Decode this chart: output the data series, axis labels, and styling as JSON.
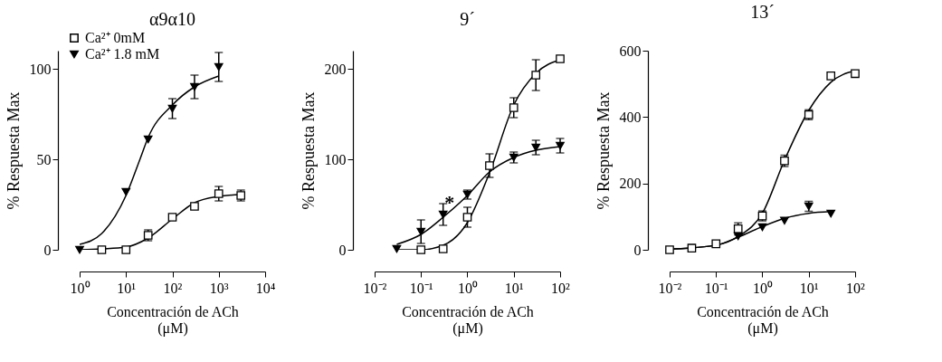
{
  "chart_data": [
    {
      "type": "scatter",
      "title": "α9α10",
      "xlabel": "Concentración de ACh\n(μM)",
      "ylabel": "% Respuesta Max",
      "log": "x",
      "xlim": [
        1,
        10000
      ],
      "xticks": [
        {
          "value": 1,
          "label": "10⁰"
        },
        {
          "value": 10,
          "label": "10¹"
        },
        {
          "value": 100,
          "label": "10²"
        },
        {
          "value": 1000,
          "label": "10³"
        },
        {
          "value": 10000,
          "label": "10⁴"
        }
      ],
      "ylim": [
        0,
        110
      ],
      "yticks": [
        0,
        50,
        100
      ],
      "legend": "top left",
      "series": [
        {
          "name": "Ca²⁺ 0mM",
          "color": "#000000",
          "marker": "square",
          "x": [
            3,
            10,
            30,
            100,
            300,
            1000,
            3000
          ],
          "values": [
            0,
            0,
            8,
            18,
            24,
            31,
            30
          ],
          "errors": [
            null,
            null,
            3,
            null,
            null,
            4,
            3
          ]
        },
        {
          "name": "Ca²⁺ 1.8 mM",
          "color": "#000000",
          "marker": "triangle",
          "x": [
            1,
            10,
            30,
            100,
            300,
            1000
          ],
          "values": [
            0,
            32,
            61,
            78,
            90,
            101
          ],
          "errors": [
            null,
            null,
            null,
            5.5,
            6.5,
            8
          ]
        },
        {
          "type": "line",
          "color": "#000000",
          "marker": "none",
          "x": [
            1,
            3,
            10,
            30,
            100,
            300,
            1000,
            3000
          ],
          "values": [
            0,
            0.5,
            1.5,
            6.5,
            17,
            26,
            29.5,
            30.5
          ]
        },
        {
          "type": "line",
          "color": "#000000",
          "marker": "none",
          "x": [
            1,
            3,
            10,
            20,
            30,
            100,
            300,
            1000
          ],
          "values": [
            3,
            9,
            30,
            50,
            62,
            80,
            90,
            96
          ]
        }
      ]
    },
    {
      "type": "scatter",
      "title": "9´",
      "xlabel": "Concentración de ACh\n(μM)",
      "ylabel": "% Respuesta Max",
      "log": "x",
      "xlim": [
        0.01,
        100
      ],
      "xticks": [
        {
          "value": 0.01,
          "label": "10⁻²"
        },
        {
          "value": 0.1,
          "label": "10⁻¹"
        },
        {
          "value": 1,
          "label": "10⁰"
        },
        {
          "value": 10,
          "label": "10¹"
        },
        {
          "value": 100,
          "label": "10²"
        }
      ],
      "ylim": [
        0,
        220
      ],
      "yticks": [
        0,
        100,
        200
      ],
      "annotations": [
        {
          "text": "*",
          "x": 0.54,
          "y": 50
        }
      ],
      "series": [
        {
          "color": "#000000",
          "marker": "square",
          "x": [
            0.1,
            0.3,
            1,
            3,
            10,
            30,
            100
          ],
          "values": [
            0,
            1,
            36,
            93,
            157,
            193,
            211
          ],
          "errors": [
            null,
            null,
            11,
            13,
            11,
            17,
            null
          ]
        },
        {
          "color": "#000000",
          "marker": "triangle",
          "x": [
            0.03,
            0.1,
            0.3,
            1,
            10,
            30,
            100
          ],
          "values": [
            1,
            20,
            39,
            61,
            102,
            113,
            115
          ],
          "errors": [
            null,
            13,
            12,
            5,
            6,
            8,
            8
          ]
        },
        {
          "type": "line",
          "color": "#000000",
          "marker": "none",
          "x": [
            0.03,
            0.1,
            0.3,
            1,
            3,
            10,
            30,
            100
          ],
          "values": [
            0,
            0,
            5,
            30,
            85,
            160,
            195,
            210
          ]
        },
        {
          "type": "line",
          "color": "#000000",
          "marker": "none",
          "x": [
            0.03,
            0.1,
            0.3,
            1,
            3,
            10,
            30,
            100
          ],
          "values": [
            6,
            17,
            36,
            60,
            86,
            102,
            110,
            114
          ]
        }
      ]
    },
    {
      "type": "scatter",
      "title": "13´",
      "xlabel": "Concentración de ACh\n(μM)",
      "ylabel": "%  Respuesta Max",
      "log": "x",
      "xlim": [
        0.01,
        100
      ],
      "xticks": [
        {
          "value": 0.01,
          "label": "10⁻²"
        },
        {
          "value": 0.1,
          "label": "10⁻¹"
        },
        {
          "value": 1,
          "label": "10⁰"
        },
        {
          "value": 10,
          "label": "10¹"
        },
        {
          "value": 100,
          "label": "10²"
        }
      ],
      "ylim": [
        0,
        600
      ],
      "yticks": [
        0,
        200,
        400,
        600
      ],
      "series": [
        {
          "color": "#000000",
          "marker": "square",
          "x": [
            0.01,
            0.03,
            0.1,
            0.3,
            1,
            3,
            10,
            30,
            100
          ],
          "values": [
            0,
            5,
            18,
            63,
            102,
            268,
            407,
            524,
            531
          ],
          "errors": [
            null,
            null,
            null,
            18,
            15,
            17,
            15,
            null,
            null
          ]
        },
        {
          "color": "#000000",
          "marker": "triangle",
          "x": [
            0.3,
            1,
            3,
            10,
            30
          ],
          "values": [
            41,
            68,
            88,
            131,
            109
          ],
          "errors": [
            null,
            null,
            null,
            15,
            null
          ]
        },
        {
          "type": "line",
          "color": "#000000",
          "marker": "none",
          "x": [
            0.01,
            0.1,
            0.3,
            1,
            3,
            10,
            30,
            100
          ],
          "values": [
            2,
            14,
            40,
            110,
            270,
            420,
            505,
            540
          ]
        },
        {
          "type": "line",
          "color": "#000000",
          "marker": "none",
          "x": [
            0.01,
            0.1,
            0.3,
            1,
            3,
            10,
            30
          ],
          "values": [
            2,
            14,
            38,
            70,
            95,
            110,
            115
          ]
        }
      ]
    }
  ]
}
